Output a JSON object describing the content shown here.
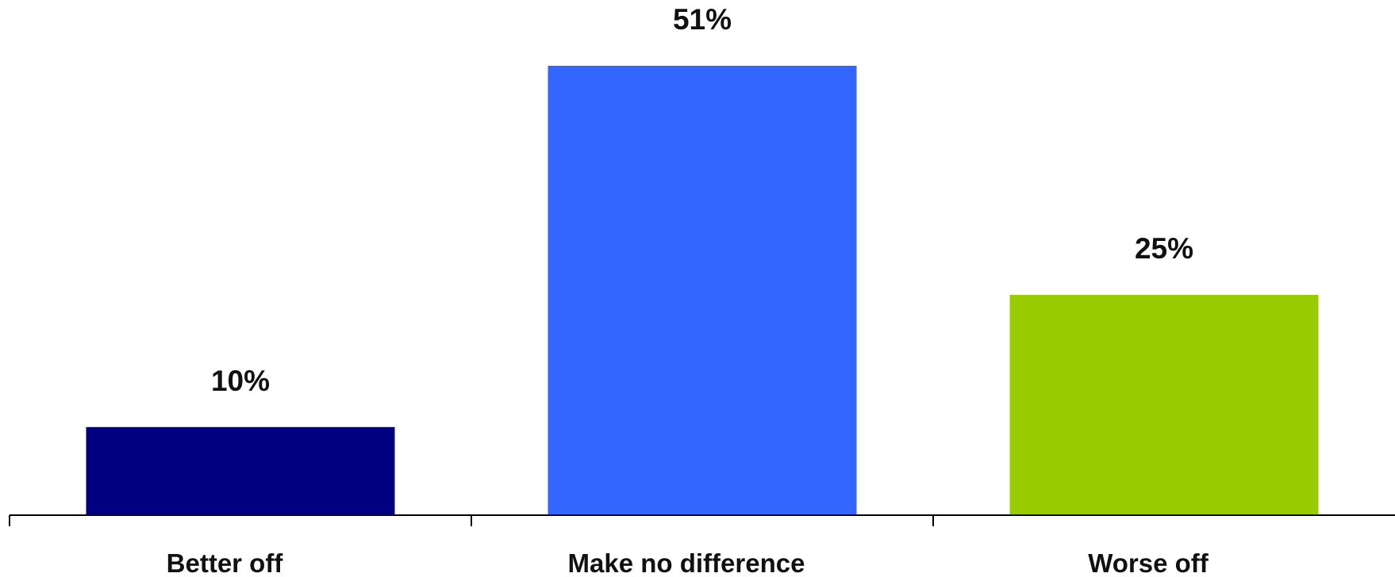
{
  "chart_data": {
    "type": "bar",
    "title": "",
    "xlabel": "",
    "ylabel": "",
    "categories": [
      "Better off",
      "Make no difference",
      "Worse off"
    ],
    "values": [
      10,
      51,
      25
    ],
    "value_labels": [
      "10%",
      "51%",
      "25%"
    ],
    "colors": [
      "#000080",
      "#3366FF",
      "#99CC00"
    ],
    "ylim": [
      0,
      51
    ],
    "grid": false,
    "legend": "none"
  }
}
